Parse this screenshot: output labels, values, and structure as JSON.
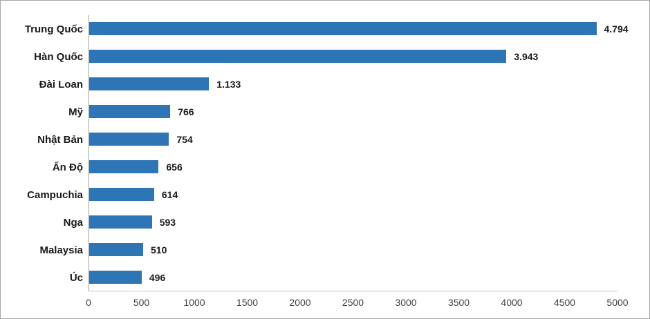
{
  "chart_data": {
    "type": "bar",
    "orientation": "horizontal",
    "title": "",
    "categories": [
      "Trung Quốc",
      "Hàn Quốc",
      "Đài Loan",
      "Mỹ",
      "Nhật Bản",
      "Ấn Độ",
      "Campuchia",
      "Nga",
      "Malaysia",
      "Úc"
    ],
    "values": [
      4794,
      3943,
      1133,
      766,
      754,
      656,
      614,
      593,
      510,
      496
    ],
    "value_labels": [
      "4.794",
      "3.943",
      "1.133",
      "766",
      "754",
      "656",
      "614",
      "593",
      "510",
      "496"
    ],
    "xlabel": "",
    "ylabel": "",
    "xlim": [
      0,
      5000
    ],
    "x_ticks": [
      0,
      500,
      1000,
      1500,
      2000,
      2500,
      3000,
      3500,
      4000,
      4500,
      5000
    ],
    "x_tick_labels": [
      "0",
      "500",
      "1000",
      "1500",
      "2000",
      "2500",
      "3000",
      "3500",
      "4000",
      "4500",
      "5000"
    ],
    "grid": false,
    "legend_position": "none",
    "bar_color": "#2E75B6",
    "axis_line_color": "#9E9E9E",
    "plot_bottom_line_color": "#C6C6C6",
    "label_text_color": "#1A1A1A",
    "tick_label_color": "#3F3F3F",
    "frame_border_color": "#A6A6A6",
    "background_color": "#FFFFFF"
  }
}
